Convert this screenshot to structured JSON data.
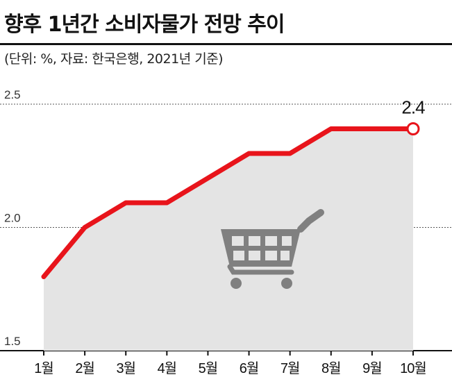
{
  "title": "향후 1년간 소비자물가 전망 추이",
  "subtitle": "(단위: %, 자료: 한국은행, 2021년 기준)",
  "colors": {
    "line": "#e8141b",
    "area": "#e4e4e4",
    "grid": "#555555",
    "icon": "#808080"
  },
  "chart_data": {
    "type": "line",
    "title": "향후 1년간 소비자물가 전망 추이",
    "xlabel": "",
    "ylabel": "",
    "categories": [
      "1월",
      "2월",
      "3월",
      "4월",
      "5월",
      "6월",
      "7월",
      "8월",
      "9월",
      "10월"
    ],
    "series": [
      {
        "values": [
          1.8,
          2.0,
          2.1,
          2.1,
          2.2,
          2.3,
          2.3,
          2.4,
          2.4,
          2.4
        ]
      }
    ],
    "ylim": [
      1.5,
      2.5
    ],
    "yticks": [
      "2.5",
      "2.0",
      "1.5"
    ],
    "highlight_label": "2.4",
    "grid": true,
    "fill_under_line": true,
    "icon": "shopping-cart-icon"
  }
}
